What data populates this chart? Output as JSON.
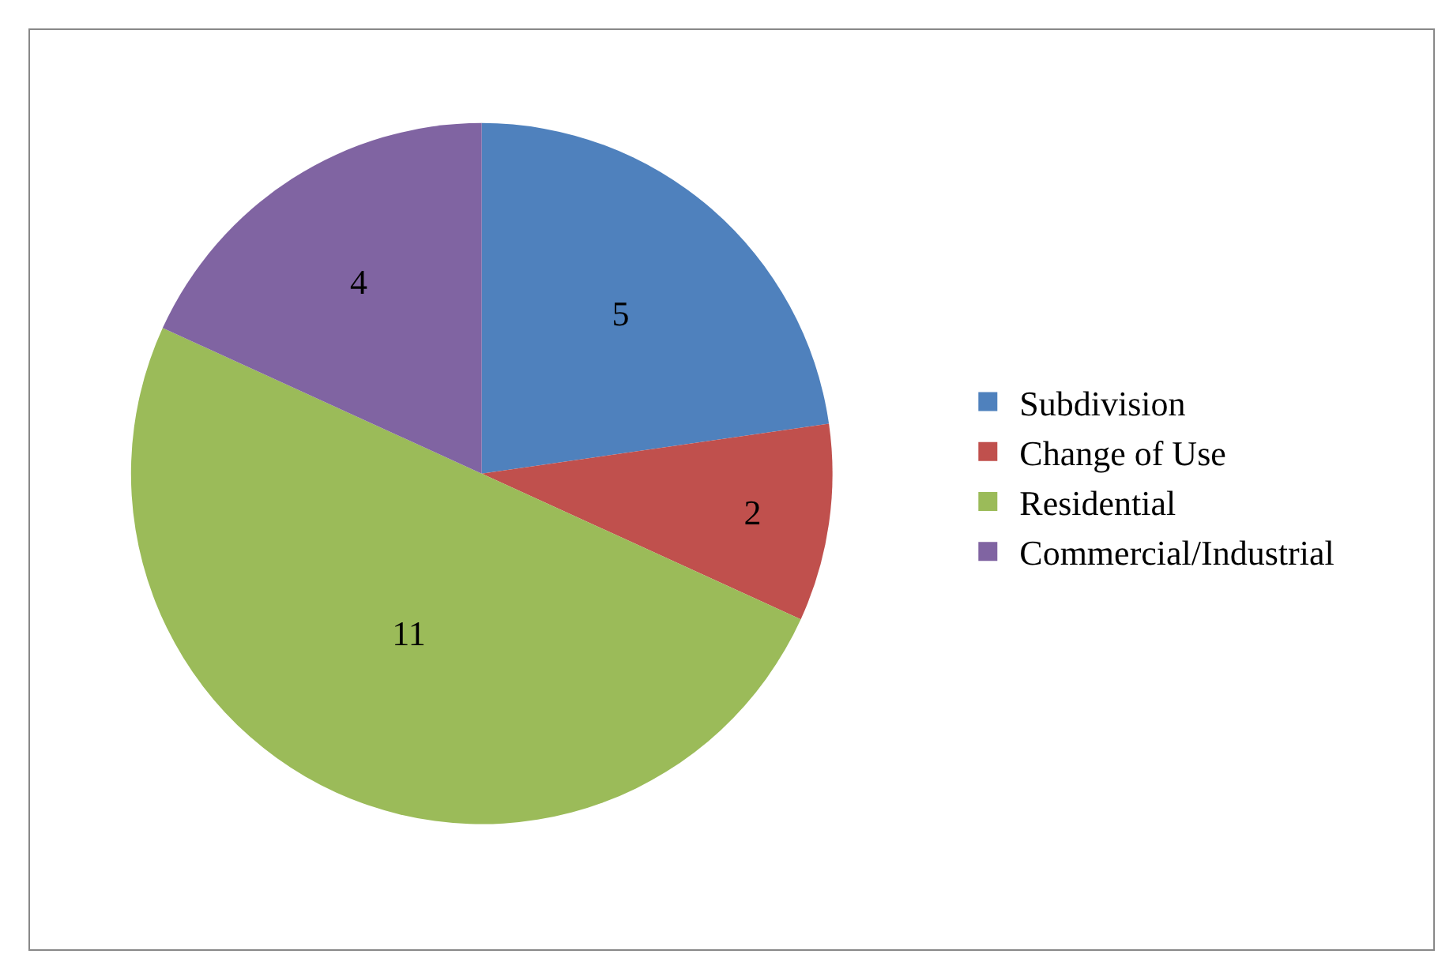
{
  "chart_data": {
    "type": "pie",
    "categories": [
      "Subdivision",
      "Change of Use",
      "Residential",
      "Commercial/Industrial"
    ],
    "values": [
      5,
      2,
      11,
      4
    ],
    "colors": [
      "#4f81bd",
      "#c0504d",
      "#9bbb59",
      "#8064a2"
    ],
    "data_labels": true,
    "legend": "right"
  }
}
